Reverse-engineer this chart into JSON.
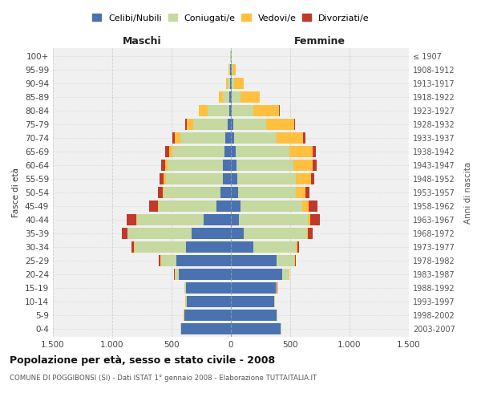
{
  "age_groups": [
    "0-4",
    "5-9",
    "10-14",
    "15-19",
    "20-24",
    "25-29",
    "30-34",
    "35-39",
    "40-44",
    "45-49",
    "50-54",
    "55-59",
    "60-64",
    "65-69",
    "70-74",
    "75-79",
    "80-84",
    "85-89",
    "90-94",
    "95-99",
    "100+"
  ],
  "birth_years": [
    "2003-2007",
    "1998-2002",
    "1993-1997",
    "1988-1992",
    "1983-1987",
    "1978-1982",
    "1973-1977",
    "1968-1972",
    "1963-1967",
    "1958-1962",
    "1953-1957",
    "1948-1952",
    "1943-1947",
    "1938-1942",
    "1933-1937",
    "1928-1932",
    "1923-1927",
    "1918-1922",
    "1913-1917",
    "1908-1912",
    "≤ 1907"
  ],
  "maschi": {
    "celibi": [
      420,
      390,
      375,
      380,
      440,
      460,
      380,
      330,
      230,
      120,
      85,
      70,
      65,
      55,
      45,
      25,
      15,
      12,
      8,
      5,
      2
    ],
    "coniugati": [
      5,
      5,
      5,
      10,
      30,
      130,
      430,
      540,
      560,
      490,
      480,
      480,
      470,
      440,
      380,
      290,
      180,
      55,
      18,
      8,
      2
    ],
    "vedovi": [
      2,
      2,
      2,
      3,
      5,
      5,
      5,
      5,
      5,
      5,
      10,
      15,
      20,
      28,
      48,
      58,
      78,
      32,
      14,
      4,
      1
    ],
    "divorziati": [
      0,
      0,
      0,
      2,
      5,
      10,
      20,
      42,
      82,
      72,
      42,
      35,
      30,
      28,
      18,
      14,
      0,
      0,
      0,
      0,
      0
    ]
  },
  "femmine": {
    "nubili": [
      420,
      385,
      365,
      375,
      435,
      385,
      190,
      105,
      70,
      82,
      60,
      55,
      50,
      40,
      28,
      18,
      10,
      8,
      6,
      4,
      2
    ],
    "coniugate": [
      5,
      5,
      5,
      10,
      50,
      150,
      360,
      535,
      580,
      522,
      490,
      490,
      480,
      450,
      360,
      278,
      178,
      75,
      22,
      8,
      2
    ],
    "vedove": [
      2,
      2,
      2,
      2,
      5,
      5,
      10,
      10,
      20,
      52,
      80,
      130,
      160,
      198,
      220,
      238,
      218,
      158,
      78,
      28,
      4
    ],
    "divorziate": [
      0,
      0,
      0,
      2,
      5,
      10,
      15,
      38,
      82,
      72,
      35,
      30,
      35,
      28,
      18,
      8,
      4,
      4,
      0,
      0,
      0
    ]
  },
  "colors": {
    "celibi": "#4a72b0",
    "coniugati": "#c5d9a0",
    "vedovi": "#ffc040",
    "divorziati": "#c0392b"
  },
  "legend_labels": [
    "Celibi/Nubili",
    "Coniugati/e",
    "Vedovi/e",
    "Divorziati/e"
  ],
  "title": "Popolazione per età, sesso e stato civile - 2008",
  "subtitle": "COMUNE DI POGGIBONSI (SI) - Dati ISTAT 1° gennaio 2008 - Elaborazione TUTTAITALIA.IT",
  "label_maschi": "Maschi",
  "label_femmine": "Femmine",
  "ylabel_left": "Fasce di età",
  "ylabel_right": "Anni di nascita",
  "xlim": 1500,
  "bg_color": "#f0f0f0",
  "grid_color": "#cccccc"
}
